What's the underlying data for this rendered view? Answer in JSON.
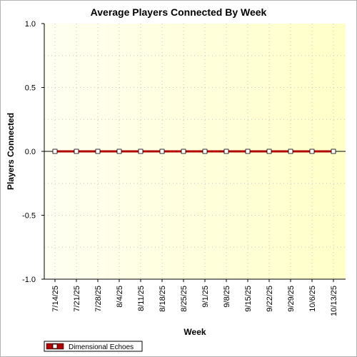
{
  "chart_data": {
    "type": "line",
    "title": "Average Players Connected By Week",
    "xlabel": "Week",
    "ylabel": "Players Connected",
    "categories": [
      "7/14/25",
      "7/21/25",
      "7/28/25",
      "8/4/25",
      "8/11/25",
      "8/18/25",
      "8/25/25",
      "9/1/25",
      "9/8/25",
      "9/15/25",
      "9/22/25",
      "9/29/25",
      "10/6/25",
      "10/13/25"
    ],
    "yticks": [
      "1.0",
      "0.5",
      "0.0",
      "-0.5",
      "-1.0"
    ],
    "ylim": [
      -1.0,
      1.0
    ],
    "grid": true,
    "legend_position": "bottom-left",
    "series": [
      {
        "name": "Dimensional Echoes",
        "color": "#b00000",
        "values": [
          0,
          0,
          0,
          0,
          0,
          0,
          0,
          0,
          0,
          0,
          0,
          0,
          0,
          0
        ]
      }
    ]
  }
}
